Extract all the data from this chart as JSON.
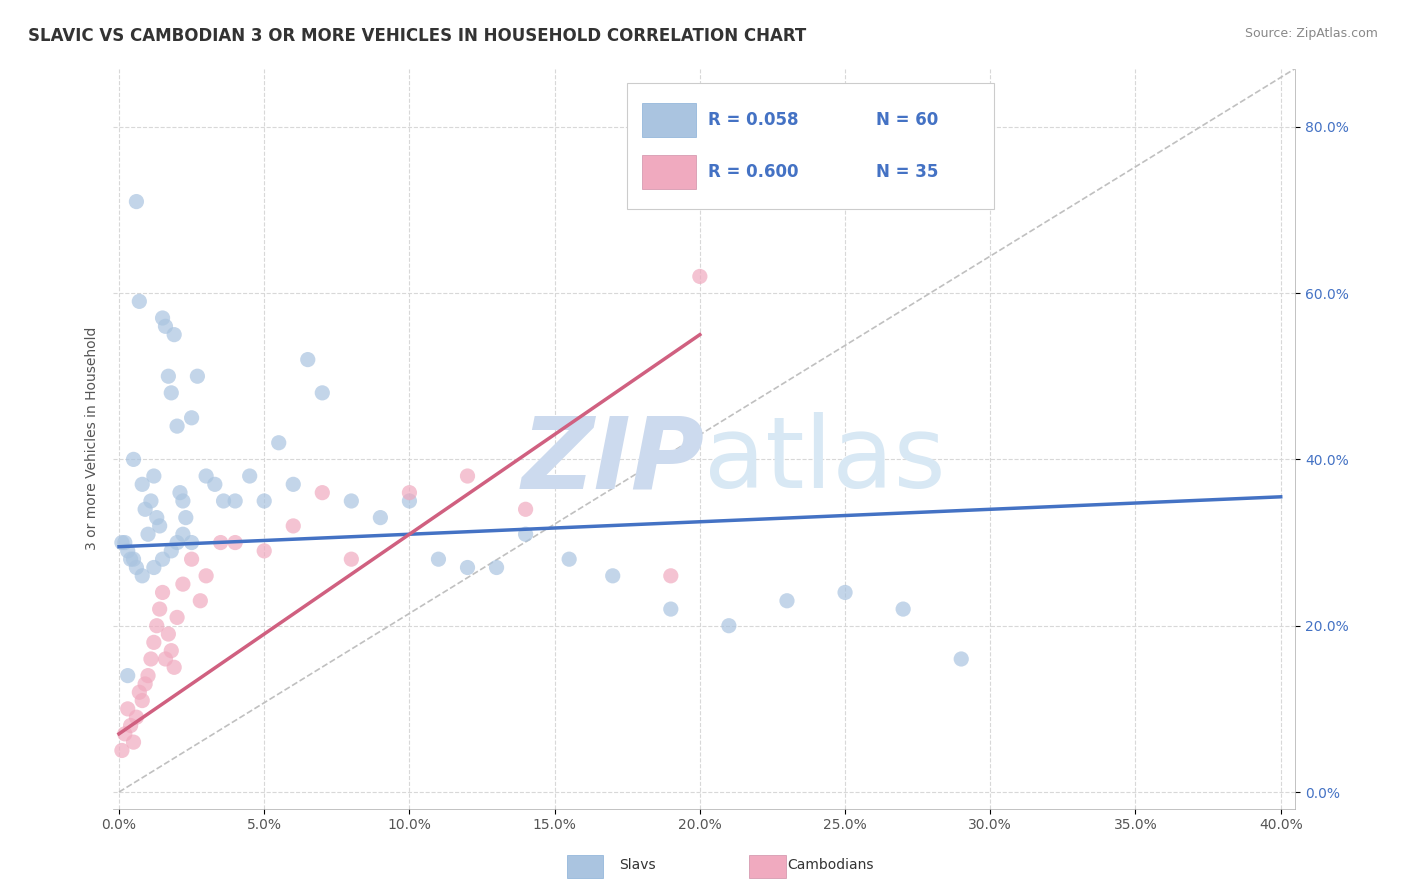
{
  "title": "SLAVIC VS CAMBODIAN 3 OR MORE VEHICLES IN HOUSEHOLD CORRELATION CHART",
  "source": "Source: ZipAtlas.com",
  "xlabel_ticks": [
    "0.0%",
    "5.0%",
    "10.0%",
    "15.0%",
    "20.0%",
    "25.0%",
    "30.0%",
    "35.0%",
    "40.0%"
  ],
  "xlabel_vals": [
    0.0,
    0.05,
    0.1,
    0.15,
    0.2,
    0.25,
    0.3,
    0.35,
    0.4
  ],
  "ylabel_ticks": [
    "0.0%",
    "20.0%",
    "40.0%",
    "60.0%",
    "80.0%"
  ],
  "ylabel_vals": [
    0.0,
    0.2,
    0.4,
    0.6,
    0.8
  ],
  "xlim": [
    -0.002,
    0.405
  ],
  "ylim": [
    -0.02,
    0.87
  ],
  "watermark_color": "#ccdaee",
  "slavs_color": "#aac4e0",
  "slavs_color_line": "#4472c4",
  "cambodians_color": "#f0aabf",
  "cambodians_color_line": "#d06080",
  "refline_color": "#c0c0c0",
  "grid_color": "#d8d8d8",
  "legend_R_slavs": "R = 0.058",
  "legend_N_slavs": "N = 60",
  "legend_R_cambodians": "R = 0.600",
  "legend_N_cambodians": "N = 35",
  "slavs_x": [
    0.001,
    0.002,
    0.003,
    0.004,
    0.005,
    0.006,
    0.007,
    0.008,
    0.009,
    0.01,
    0.011,
    0.012,
    0.013,
    0.014,
    0.015,
    0.016,
    0.017,
    0.018,
    0.019,
    0.02,
    0.021,
    0.022,
    0.023,
    0.025,
    0.027,
    0.03,
    0.033,
    0.036,
    0.04,
    0.045,
    0.05,
    0.055,
    0.06,
    0.065,
    0.07,
    0.08,
    0.09,
    0.1,
    0.11,
    0.12,
    0.13,
    0.14,
    0.155,
    0.17,
    0.19,
    0.21,
    0.23,
    0.25,
    0.27,
    0.29,
    0.02,
    0.022,
    0.025,
    0.018,
    0.015,
    0.012,
    0.008,
    0.006,
    0.005,
    0.003
  ],
  "slavs_y": [
    0.3,
    0.3,
    0.29,
    0.28,
    0.28,
    0.27,
    0.59,
    0.37,
    0.34,
    0.31,
    0.35,
    0.38,
    0.33,
    0.32,
    0.57,
    0.56,
    0.5,
    0.48,
    0.55,
    0.44,
    0.36,
    0.35,
    0.33,
    0.45,
    0.5,
    0.38,
    0.37,
    0.35,
    0.35,
    0.38,
    0.35,
    0.42,
    0.37,
    0.52,
    0.48,
    0.35,
    0.33,
    0.35,
    0.28,
    0.27,
    0.27,
    0.31,
    0.28,
    0.26,
    0.22,
    0.2,
    0.23,
    0.24,
    0.22,
    0.16,
    0.3,
    0.31,
    0.3,
    0.29,
    0.28,
    0.27,
    0.26,
    0.71,
    0.4,
    0.14
  ],
  "cambodians_x": [
    0.001,
    0.002,
    0.003,
    0.004,
    0.005,
    0.006,
    0.007,
    0.008,
    0.009,
    0.01,
    0.011,
    0.012,
    0.013,
    0.014,
    0.015,
    0.016,
    0.017,
    0.018,
    0.019,
    0.02,
    0.022,
    0.025,
    0.028,
    0.03,
    0.035,
    0.04,
    0.05,
    0.06,
    0.07,
    0.08,
    0.1,
    0.12,
    0.14,
    0.19,
    0.2
  ],
  "cambodians_y": [
    0.05,
    0.07,
    0.1,
    0.08,
    0.06,
    0.09,
    0.12,
    0.11,
    0.13,
    0.14,
    0.16,
    0.18,
    0.2,
    0.22,
    0.24,
    0.16,
    0.19,
    0.17,
    0.15,
    0.21,
    0.25,
    0.28,
    0.23,
    0.26,
    0.3,
    0.3,
    0.29,
    0.32,
    0.36,
    0.28,
    0.36,
    0.38,
    0.34,
    0.26,
    0.62
  ],
  "slavs_trend_x": [
    0.0,
    0.4
  ],
  "slavs_trend_y": [
    0.295,
    0.355
  ],
  "cambodians_trend_x": [
    0.0,
    0.2
  ],
  "cambodians_trend_y": [
    0.07,
    0.55
  ],
  "refline_x": [
    0.0,
    0.405
  ],
  "refline_y": [
    0.0,
    0.87
  ]
}
